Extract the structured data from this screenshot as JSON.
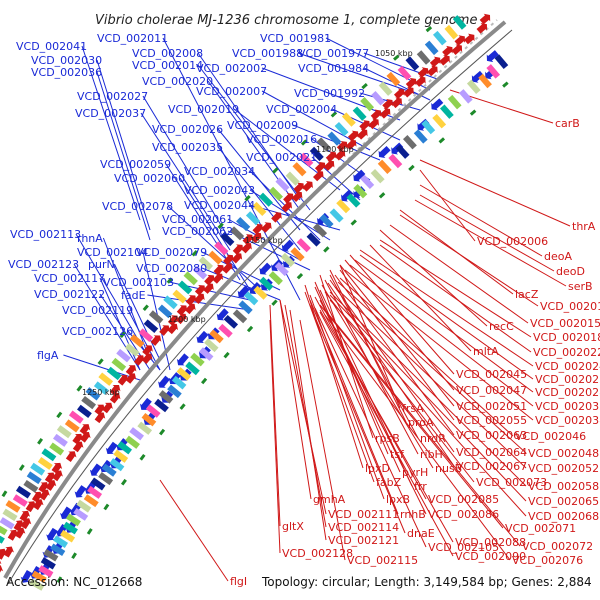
{
  "title": "Vibrio cholerae MJ-1236 chromosome 1, complete genome",
  "accession": "Accession: NC_012668",
  "topology": "Topology: circular; Length: 3,149,584 bp; Genes: 2,884",
  "ticks": [
    "1050 kbp",
    "1100 kbp",
    "1150 kbp",
    "1200 kbp",
    "1250 kbp"
  ],
  "colors": {
    "forward": "#1a2ad6",
    "reverse": "#d01818",
    "backbone": "#8a8a8a",
    "axis_line": "#333333"
  },
  "blue_labels": [
    "VCD_002041",
    "VCD_002011",
    "VCD_001981",
    "VCD_002030",
    "VCD_002008",
    "VCD_001988",
    "VCD_001977",
    "VCD_002036",
    "VCD_002014",
    "VCD_002002",
    "VCD_001984",
    "VCD_002020",
    "VCD_002027",
    "VCD_002007",
    "VCD_001992",
    "VCD_002037",
    "VCD_002019",
    "VCD_002004",
    "VCD_002009",
    "VCD_002026",
    "VCD_002016",
    "VCD_002035",
    "VCD_002021",
    "VCD_002059",
    "VCD_002034",
    "VCD_002060",
    "VCD_002043",
    "VCD_002078",
    "VCD_002044",
    "VCD_002061",
    "VCD_002113",
    "VCD_002062",
    "rhnA",
    "VCD_002104",
    "VCD_002079",
    "VCD_002123",
    "purN",
    "VCD_002080",
    "VCD_002117",
    "VCD_002103",
    "VCD_002122",
    "fadE",
    "VCD_002119",
    "VCD_002126",
    "flgA"
  ],
  "red_labels": [
    "carB",
    "thrA",
    "VCD_002006",
    "deoA",
    "deoD",
    "serB",
    "lacZ",
    "VCD_002012",
    "recC",
    "VCD_002015",
    "VCD_002018",
    "mltA",
    "VCD_002022",
    "VCD_002024",
    "VCD_002045",
    "VCD_002025",
    "VCD_002047",
    "VCD_002028",
    "frsA",
    "VCD_002051",
    "VCD_002033",
    "proA",
    "VCD_002055",
    "VCD_002038",
    "rpsB",
    "nrdR",
    "VCD_002063",
    "VCD_002046",
    "ribH",
    "VCD_002064",
    "tsf",
    "nusB",
    "VCD_002067",
    "VCD_002048",
    "lpxD",
    "pyrH",
    "frr",
    "VCD_002052",
    "fabZ",
    "VCD_002073",
    "VCD_002058",
    "gmhA",
    "lpxB",
    "VCD_002085",
    "VCD_002065",
    "VCD_002111",
    "rnhB",
    "VCD_002086",
    "VCD_002068",
    "gltX",
    "VCD_002114",
    "dnaE",
    "VCD_002071",
    "VCD_002121",
    "VCD_002105",
    "VCD_002088",
    "VCD_002072",
    "VCD_002128",
    "VCD_002115",
    "VCD_002090",
    "VCD_002076",
    "flgI"
  ]
}
